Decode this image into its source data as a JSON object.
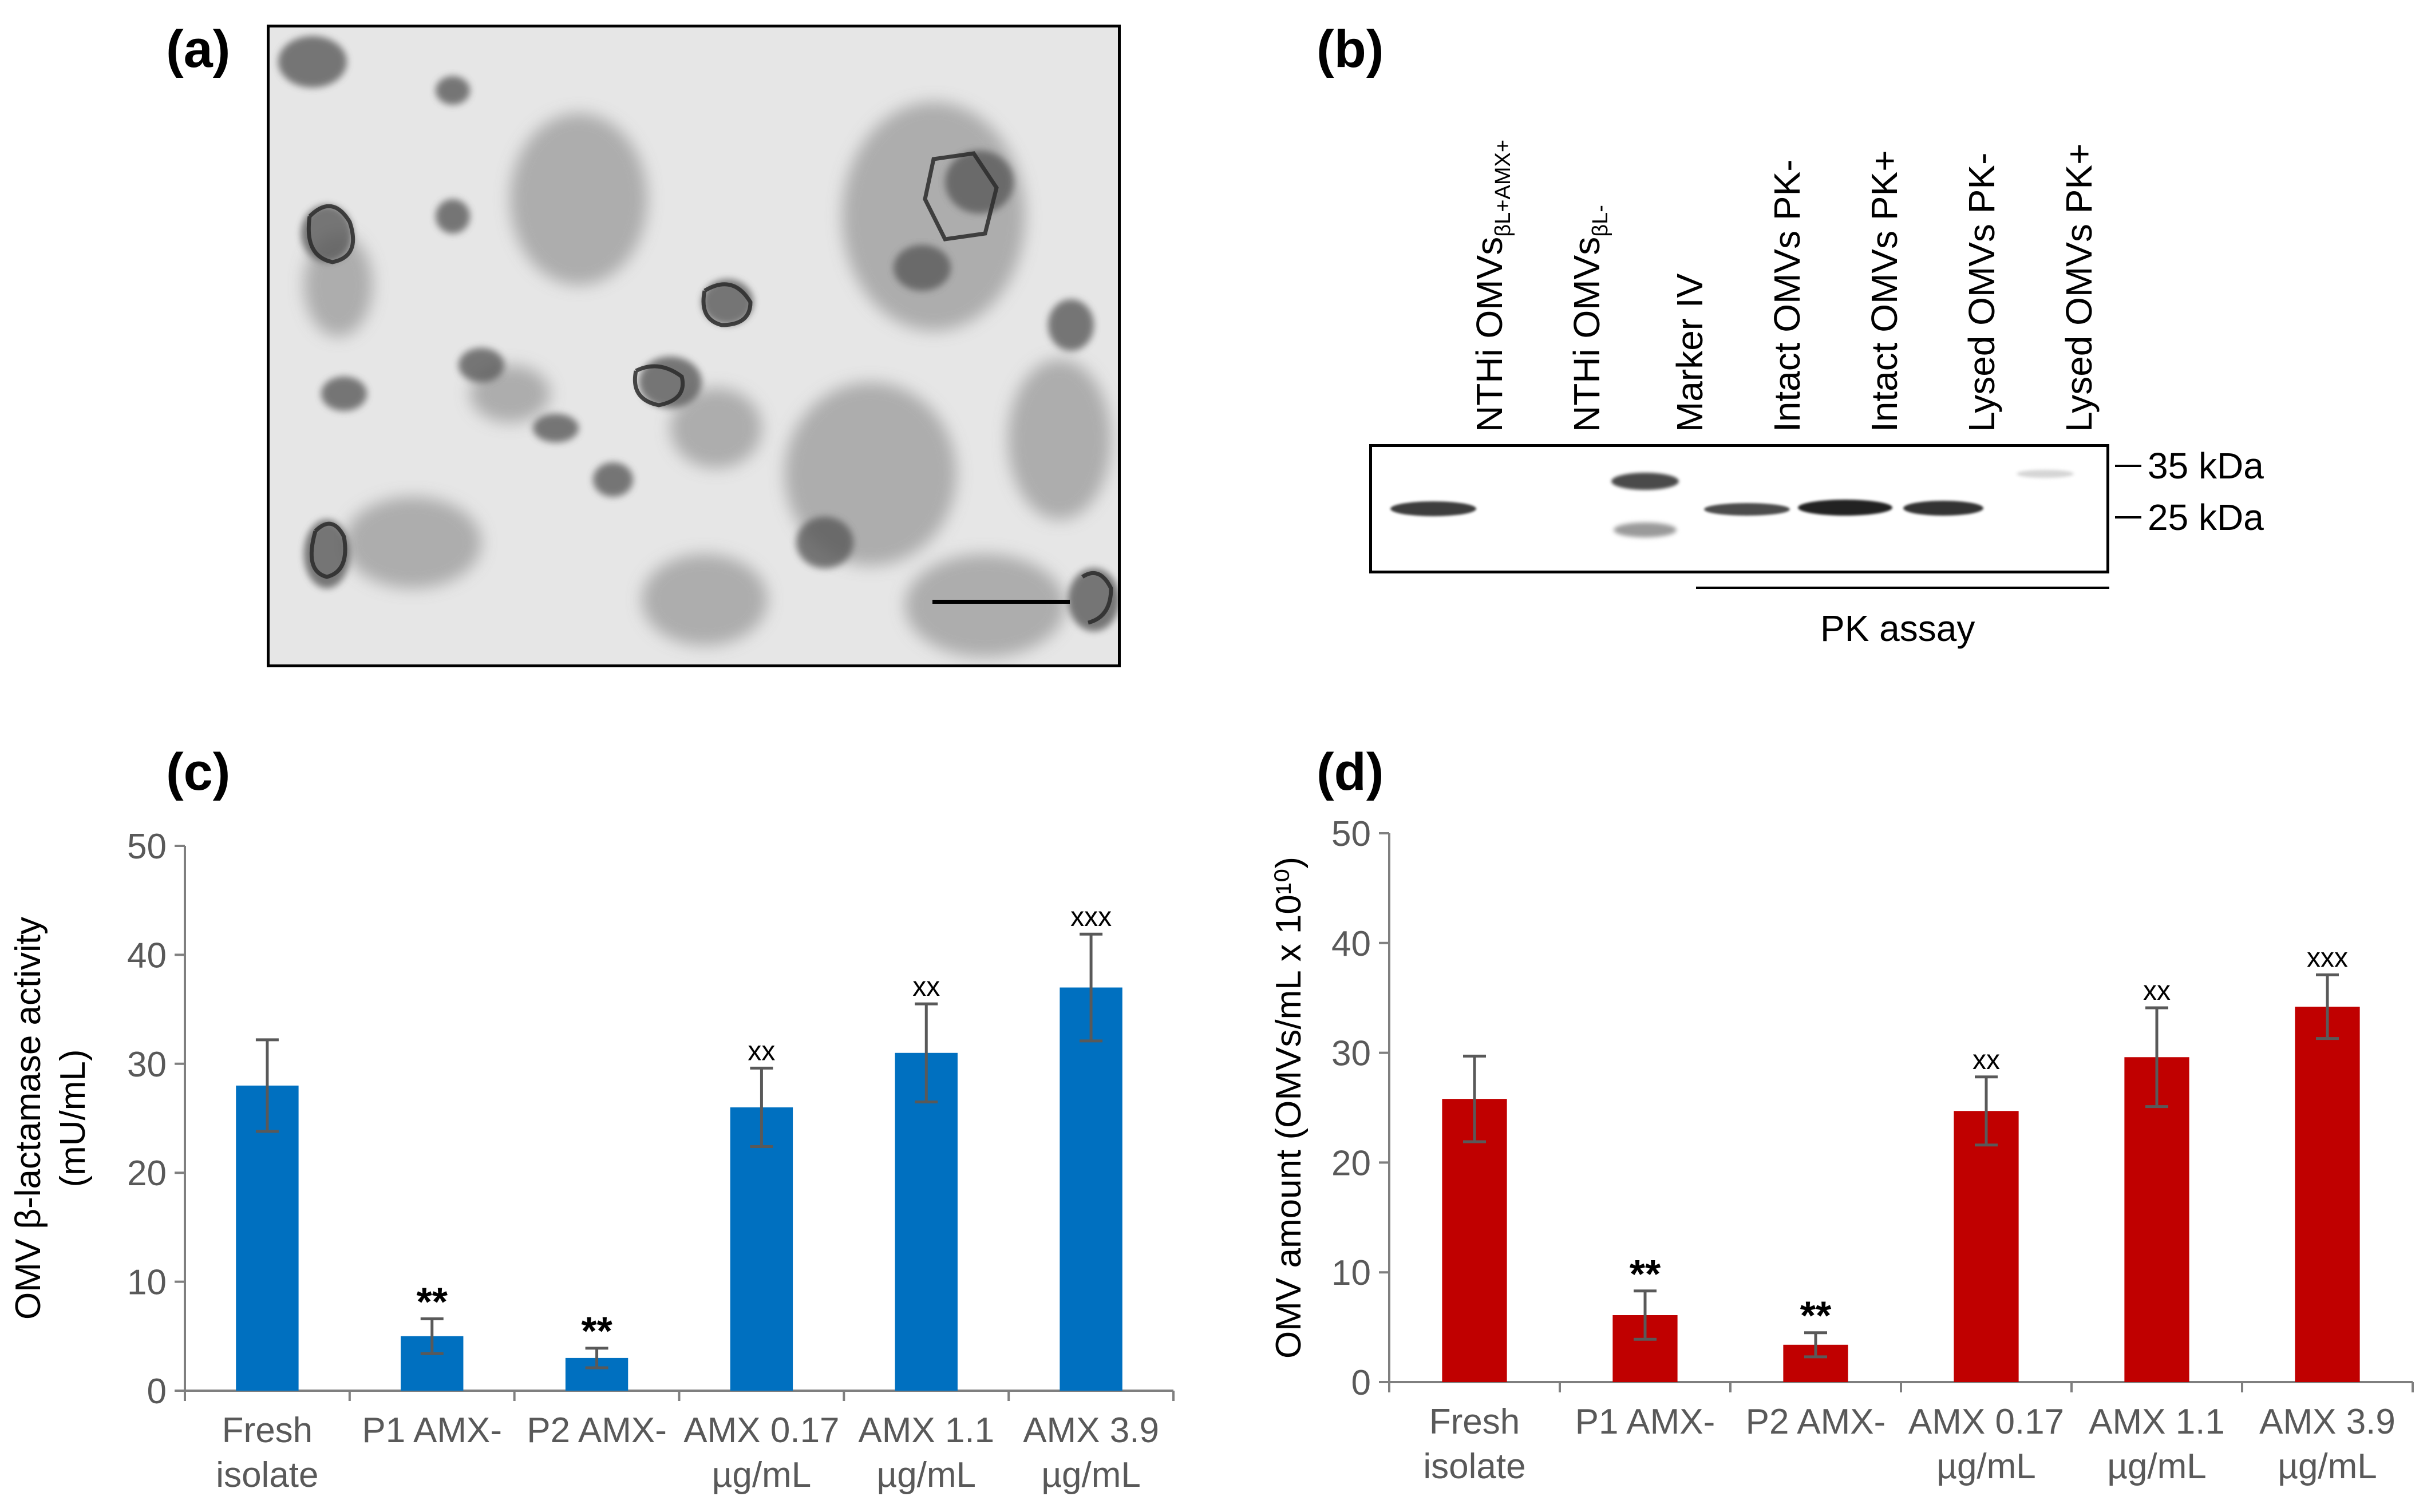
{
  "panel_labels": {
    "a": "(a)",
    "b": "(b)",
    "c": "(c)",
    "d": "(d)"
  },
  "blot": {
    "lanes": [
      {
        "main": "NTHi OMVs",
        "sub": "βL+AMX+"
      },
      {
        "main": "NTHi OMVs",
        "sub": "βL-"
      },
      {
        "main": "Marker IV",
        "sub": ""
      },
      {
        "main": "Intact OMVs PK-",
        "sub": ""
      },
      {
        "main": "Intact OMVs PK+",
        "sub": ""
      },
      {
        "main": "Lysed OMVs PK-",
        "sub": ""
      },
      {
        "main": "Lysed OMVs PK+",
        "sub": ""
      }
    ],
    "markers": [
      "35 kDa",
      "25 kDa"
    ],
    "group_label": "PK assay"
  },
  "chart_data": [
    {
      "type": "bar",
      "categories": [
        [
          "Fresh",
          "isolate"
        ],
        [
          "P1 AMX-"
        ],
        [
          "P2 AMX-"
        ],
        [
          "AMX 0.17",
          "µg/mL"
        ],
        [
          "AMX 1.1",
          "µg/mL"
        ],
        [
          "AMX 3.9",
          "µg/mL"
        ]
      ],
      "values": [
        28,
        5,
        3,
        26,
        31,
        37
      ],
      "errors": [
        4.2,
        1.6,
        0.9,
        3.6,
        4.5,
        4.9
      ],
      "annotations": [
        "",
        "**",
        "**",
        "xx",
        "xx",
        "xxx"
      ],
      "ylabel": [
        "OMV β-lactamase activity",
        "(mU/mL)"
      ],
      "ylim": [
        0,
        50
      ],
      "yticks": [
        0,
        10,
        20,
        30,
        40,
        50
      ],
      "color": "#0070C0"
    },
    {
      "type": "bar",
      "categories": [
        [
          "Fresh",
          "isolate"
        ],
        [
          "P1 AMX-"
        ],
        [
          "P2 AMX-"
        ],
        [
          "AMX 0.17",
          "µg/mL"
        ],
        [
          "AMX 1.1",
          "µg/mL"
        ],
        [
          "AMX 3.9",
          "µg/mL"
        ]
      ],
      "values": [
        25.8,
        6.1,
        3.4,
        24.7,
        29.6,
        34.2
      ],
      "errors": [
        3.9,
        2.2,
        1.1,
        3.1,
        4.5,
        2.9
      ],
      "annotations": [
        "",
        "**",
        "**",
        "xx",
        "xx",
        "xxx"
      ],
      "ylabel": "OMV amount (OMVs/mL x 10¹⁰)",
      "ylim": [
        0,
        50
      ],
      "yticks": [
        0,
        10,
        20,
        30,
        40,
        50
      ],
      "color": "#C00000"
    }
  ]
}
